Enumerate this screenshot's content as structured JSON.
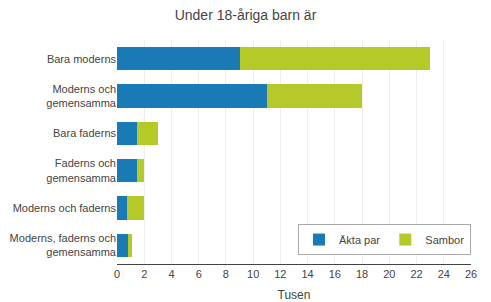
{
  "chart_data": {
    "type": "bar",
    "orientation": "horizontal",
    "stacked": true,
    "title": "Under 18-åriga barn är",
    "xlabel": "Tusen",
    "categories": [
      "Bara moderns",
      "Moderns och\ngemensamma",
      "Bara faderns",
      "Faderns och\ngemensamma",
      "Moderns och faderns",
      "Moderns, faderns och\ngemensamma"
    ],
    "series": [
      {
        "name": "Äkta par",
        "color": "#1a7ab5",
        "values": [
          9.0,
          11.0,
          1.5,
          1.5,
          0.7,
          0.8
        ]
      },
      {
        "name": "Sambor",
        "color": "#b5c929",
        "values": [
          14.0,
          7.0,
          1.5,
          0.5,
          1.3,
          0.3
        ]
      }
    ],
    "xlim": [
      0,
      26
    ],
    "xticks": [
      0,
      2,
      4,
      6,
      8,
      10,
      12,
      14,
      16,
      18,
      20,
      22,
      24,
      26
    ],
    "grid": true,
    "legend": "lower right"
  }
}
